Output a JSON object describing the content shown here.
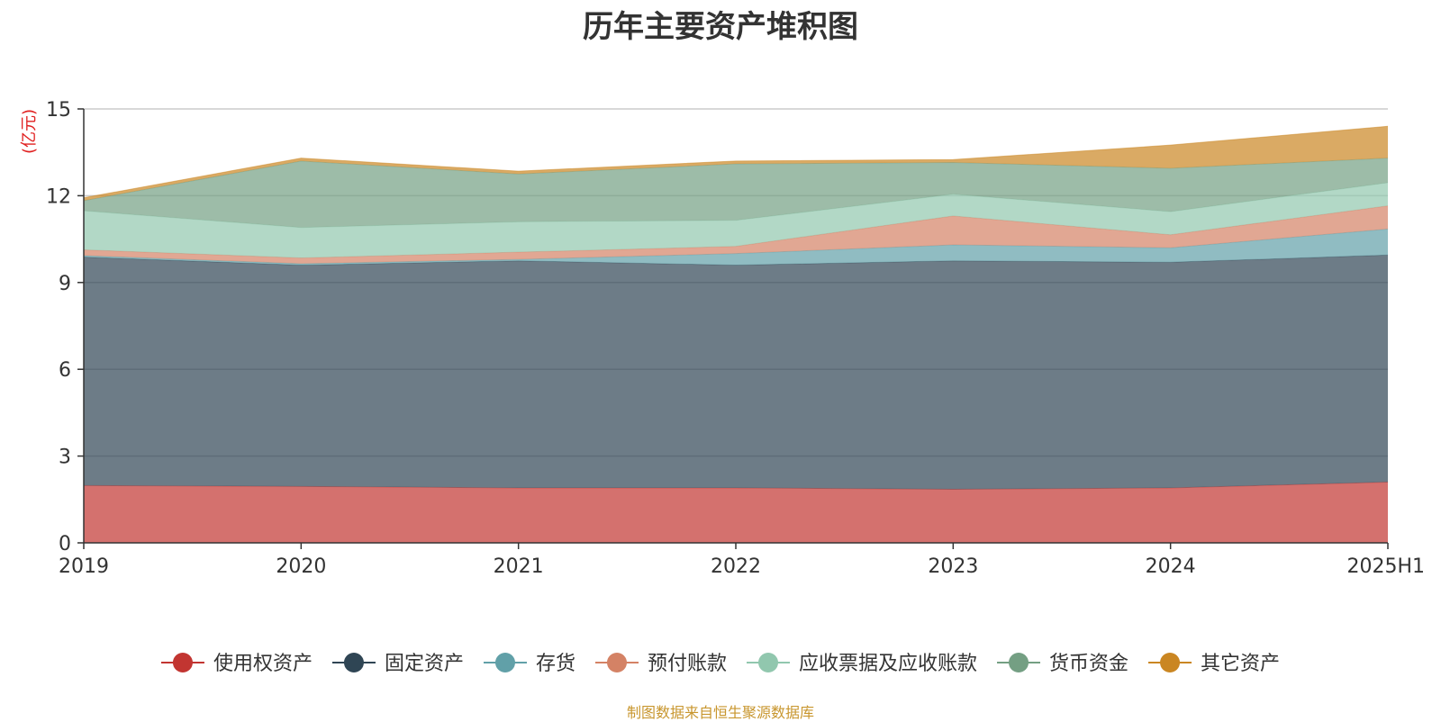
{
  "chart_data": {
    "type": "area",
    "stacked": true,
    "title": "历年主要资产堆积图",
    "ylabel": "(亿元)",
    "xlabel": "",
    "ylim": [
      0,
      15
    ],
    "yticks": [
      0,
      3,
      6,
      9,
      12,
      15
    ],
    "categories": [
      "2019",
      "2020",
      "2021",
      "2022",
      "2023",
      "2024",
      "2025H1"
    ],
    "series": [
      {
        "name": "使用权资产",
        "color": "#c23531",
        "values": [
          1.98,
          1.95,
          1.9,
          1.9,
          1.85,
          1.9,
          2.1
        ]
      },
      {
        "name": "固定资产",
        "color": "#2f4554",
        "values": [
          7.9,
          7.65,
          7.85,
          7.7,
          7.9,
          7.8,
          7.85
        ]
      },
      {
        "name": "存货",
        "color": "#61a0a8",
        "values": [
          0.05,
          0.05,
          0.05,
          0.4,
          0.55,
          0.5,
          0.9
        ]
      },
      {
        "name": "预付账款",
        "color": "#d48265",
        "values": [
          0.2,
          0.2,
          0.25,
          0.25,
          1.0,
          0.45,
          0.8
        ]
      },
      {
        "name": "应收票据及应收账款",
        "color": "#91c7ae",
        "values": [
          1.35,
          1.05,
          1.05,
          0.9,
          0.75,
          0.8,
          0.8
        ]
      },
      {
        "name": "货币资金",
        "color": "#749f83",
        "values": [
          0.35,
          2.3,
          1.65,
          1.95,
          1.1,
          1.5,
          0.85
        ]
      },
      {
        "name": "其它资产",
        "color": "#ca8622",
        "values": [
          0.1,
          0.1,
          0.1,
          0.1,
          0.1,
          0.8,
          1.1
        ]
      }
    ],
    "legend_position": "bottom",
    "grid": true
  },
  "source_note": "制图数据来自恒生聚源数据库",
  "colors": {
    "axis": "#333333",
    "grid": "#cccccc",
    "ylabel": "#e02020",
    "source_note": "#c8962e"
  }
}
